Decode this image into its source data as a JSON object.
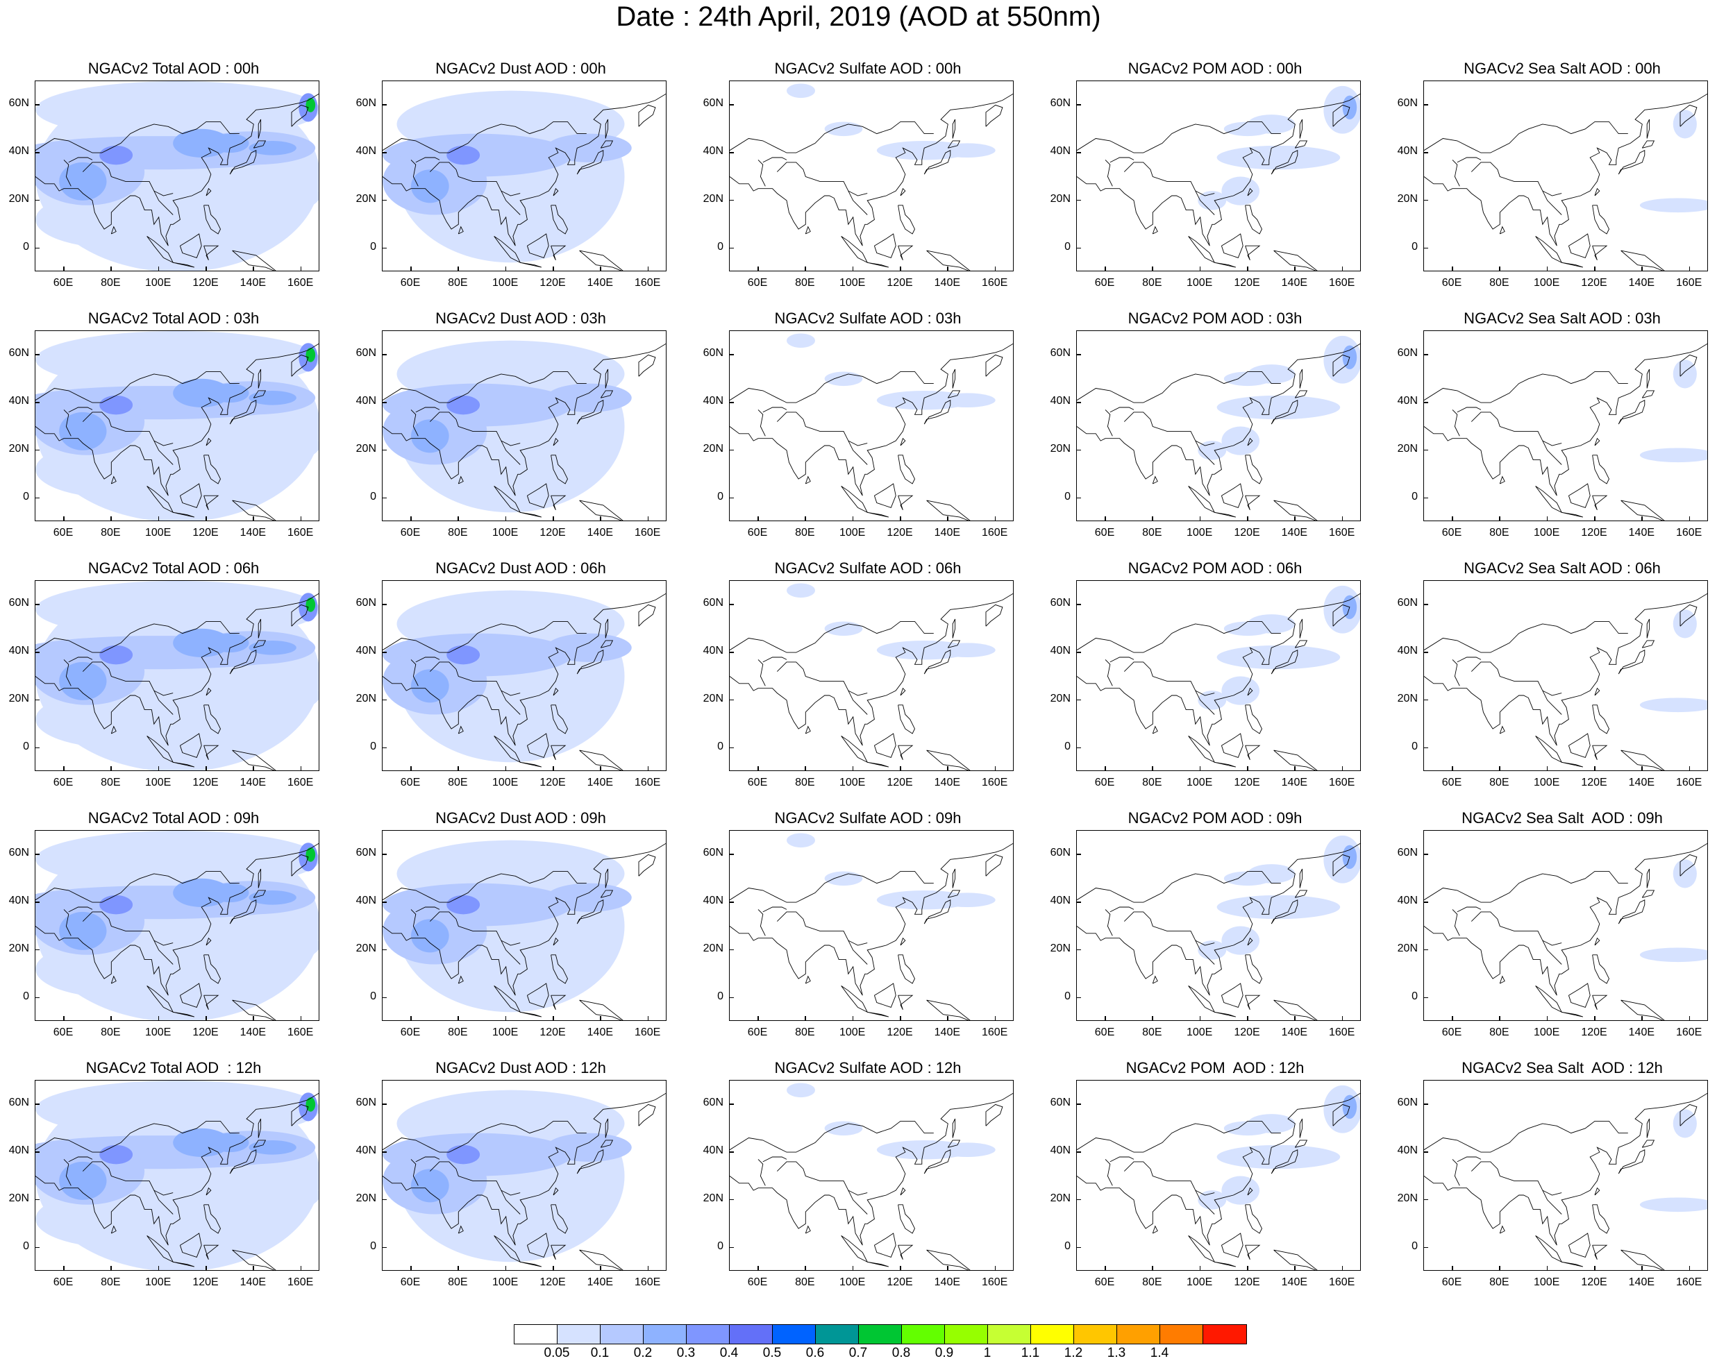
{
  "title": "Date : 24th April, 2019 (AOD at 550nm)",
  "panels": [
    {
      "title": "NGACv2 Total AOD : 00h",
      "species": "total",
      "hour": "00h"
    },
    {
      "title": "NGACv2 Dust AOD : 00h",
      "species": "dust",
      "hour": "00h"
    },
    {
      "title": "NGACv2 Sulfate AOD : 00h",
      "species": "sulfate",
      "hour": "00h"
    },
    {
      "title": "NGACv2 POM AOD : 00h",
      "species": "pom",
      "hour": "00h"
    },
    {
      "title": "NGACv2 Sea Salt AOD : 00h",
      "species": "seasalt",
      "hour": "00h"
    },
    {
      "title": "NGACv2 Total AOD : 03h",
      "species": "total",
      "hour": "03h"
    },
    {
      "title": "NGACv2 Dust AOD : 03h",
      "species": "dust",
      "hour": "03h"
    },
    {
      "title": "NGACv2 Sulfate AOD : 03h",
      "species": "sulfate",
      "hour": "03h"
    },
    {
      "title": "NGACv2 POM AOD : 03h",
      "species": "pom",
      "hour": "03h"
    },
    {
      "title": "NGACv2 Sea Salt AOD : 03h",
      "species": "seasalt",
      "hour": "03h"
    },
    {
      "title": "NGACv2 Total AOD : 06h",
      "species": "total",
      "hour": "06h"
    },
    {
      "title": "NGACv2 Dust AOD : 06h",
      "species": "dust",
      "hour": "06h"
    },
    {
      "title": "NGACv2 Sulfate AOD : 06h",
      "species": "sulfate",
      "hour": "06h"
    },
    {
      "title": "NGACv2 POM AOD : 06h",
      "species": "pom",
      "hour": "06h"
    },
    {
      "title": "NGACv2 Sea Salt AOD : 06h",
      "species": "seasalt",
      "hour": "06h"
    },
    {
      "title": "NGACv2 Total AOD : 09h",
      "species": "total",
      "hour": "09h"
    },
    {
      "title": "NGACv2 Dust AOD : 09h",
      "species": "dust",
      "hour": "09h"
    },
    {
      "title": "NGACv2 Sulfate AOD : 09h",
      "species": "sulfate",
      "hour": "09h"
    },
    {
      "title": "NGACv2 POM AOD : 09h",
      "species": "pom",
      "hour": "09h"
    },
    {
      "title": "NGACv2 Sea Salt  AOD : 09h",
      "species": "seasalt",
      "hour": "09h"
    },
    {
      "title": "NGACv2 Total AOD  : 12h",
      "species": "total",
      "hour": "12h"
    },
    {
      "title": "NGACv2 Dust AOD : 12h",
      "species": "dust",
      "hour": "12h"
    },
    {
      "title": "NGACv2 Sulfate AOD : 12h",
      "species": "sulfate",
      "hour": "12h"
    },
    {
      "title": "NGACv2 POM  AOD : 12h",
      "species": "pom",
      "hour": "12h"
    },
    {
      "title": "NGACv2 Sea Salt  AOD : 12h",
      "species": "seasalt",
      "hour": "12h"
    }
  ],
  "axes": {
    "lon_ticks": [
      "60E",
      "80E",
      "100E",
      "120E",
      "140E",
      "160E"
    ],
    "lon_values": [
      60,
      80,
      100,
      120,
      140,
      160
    ],
    "lat_ticks": [
      "60N",
      "40N",
      "20N",
      "0"
    ],
    "lat_values": [
      60,
      40,
      20,
      0
    ],
    "lon_range": [
      48,
      168
    ],
    "lat_range": [
      -10,
      70
    ]
  },
  "colorbar": {
    "labels": [
      "0.05",
      "0.1",
      "0.2",
      "0.3",
      "0.4",
      "0.5",
      "0.6",
      "0.7",
      "0.8",
      "0.9",
      "1",
      "1.1",
      "1.2",
      "1.3",
      "1.4"
    ],
    "colors": [
      "#ffffff",
      "#d6e2ff",
      "#b5c9ff",
      "#8eb2ff",
      "#7f96ff",
      "#6370f8",
      "#0063ff",
      "#009696",
      "#00c633",
      "#63ff00",
      "#96ff00",
      "#c6ff33",
      "#ffff00",
      "#ffc600",
      "#ffa000",
      "#ff7c00",
      "#ff1900"
    ]
  }
}
